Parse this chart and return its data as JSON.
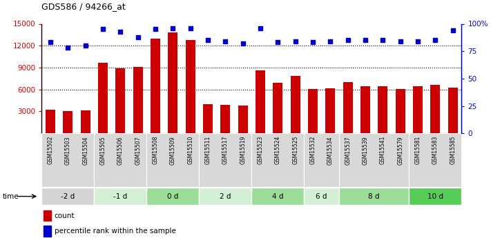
{
  "title": "GDS586 / 94266_at",
  "samples": [
    "GSM15502",
    "GSM15503",
    "GSM15504",
    "GSM15505",
    "GSM15506",
    "GSM15507",
    "GSM15508",
    "GSM15509",
    "GSM15510",
    "GSM15511",
    "GSM15517",
    "GSM15519",
    "GSM15523",
    "GSM15524",
    "GSM15525",
    "GSM15532",
    "GSM15534",
    "GSM15537",
    "GSM15539",
    "GSM15541",
    "GSM15579",
    "GSM15581",
    "GSM15583",
    "GSM15585"
  ],
  "bar_values": [
    3200,
    3050,
    3100,
    9700,
    8900,
    9050,
    13000,
    13800,
    12800,
    4000,
    3900,
    3800,
    8600,
    6900,
    7900,
    6050,
    6150,
    7050,
    6400,
    6450,
    6100,
    6400,
    6600,
    6300
  ],
  "dot_values_pct": [
    83,
    78,
    80,
    95,
    93,
    88,
    95,
    96,
    96,
    85,
    84,
    82,
    96,
    83,
    84,
    83,
    84,
    85,
    85,
    85,
    84,
    84,
    85,
    94
  ],
  "groups": [
    {
      "label": "-2 d",
      "start": 0,
      "end": 3,
      "color": "#d4d4d4"
    },
    {
      "label": "-1 d",
      "start": 3,
      "end": 6,
      "color": "#d4f0d4"
    },
    {
      "label": "0 d",
      "start": 6,
      "end": 9,
      "color": "#99dd99"
    },
    {
      "label": "2 d",
      "start": 9,
      "end": 12,
      "color": "#d4f0d4"
    },
    {
      "label": "4 d",
      "start": 12,
      "end": 15,
      "color": "#99dd99"
    },
    {
      "label": "6 d",
      "start": 15,
      "end": 17,
      "color": "#d4f0d4"
    },
    {
      "label": "8 d",
      "start": 17,
      "end": 21,
      "color": "#99dd99"
    },
    {
      "label": "10 d",
      "start": 21,
      "end": 24,
      "color": "#55cc55"
    }
  ],
  "ylim_left": [
    0,
    15000
  ],
  "ylim_right": [
    0,
    100
  ],
  "y_ticks_left": [
    3000,
    6000,
    9000,
    12000,
    15000
  ],
  "y_ticks_right": [
    0,
    25,
    50,
    75,
    100
  ],
  "bar_color": "#cc0000",
  "dot_color": "#0000cc",
  "background_color": "#ffffff",
  "label_count": "count",
  "label_pct": "percentile rank within the sample"
}
